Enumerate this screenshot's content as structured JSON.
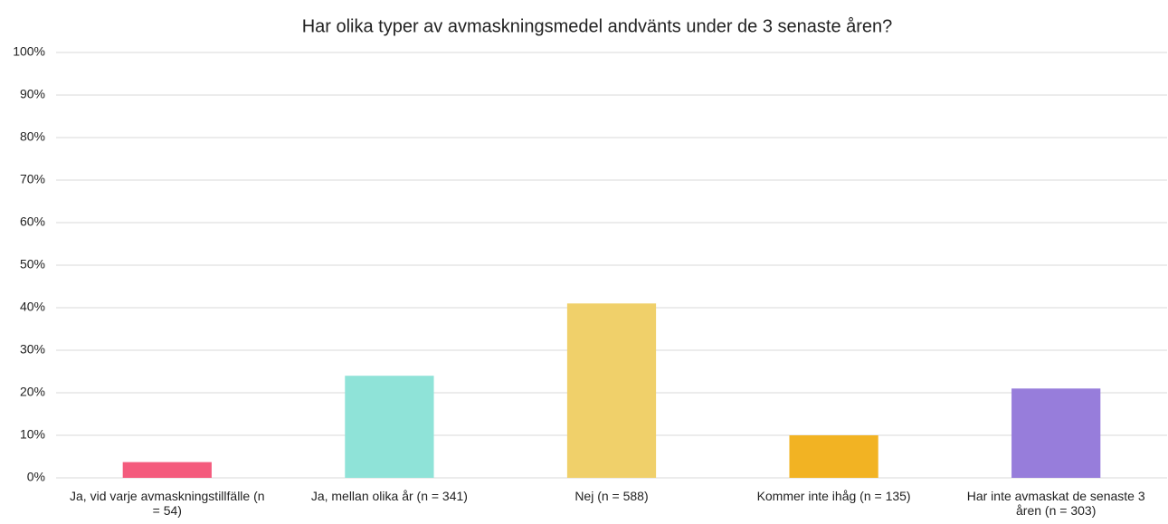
{
  "chart_data": {
    "type": "bar",
    "title": "Har olika typer av avmaskningsmedel andvänts under de 3 senaste åren?",
    "categories": [
      "Ja, vid varje avmaskningstillfälle (n = 54)",
      "Ja, mellan olika år (n = 341)",
      "Nej (n = 588)",
      "Kommer inte ihåg (n = 135)",
      "Har inte avmaskat de senaste 3 åren (n = 303)"
    ],
    "values": [
      3.7,
      24,
      41,
      10,
      21
    ],
    "colors": [
      "#f45b7d",
      "#8fe3d8",
      "#f0d06a",
      "#f2b323",
      "#977ddb"
    ],
    "ylim": [
      0,
      100
    ],
    "yticks": [
      {
        "value": 0,
        "label": "0%"
      },
      {
        "value": 10,
        "label": "10%"
      },
      {
        "value": 20,
        "label": "20%"
      },
      {
        "value": 30,
        "label": "30%"
      },
      {
        "value": 40,
        "label": "40%"
      },
      {
        "value": 50,
        "label": "50%"
      },
      {
        "value": 60,
        "label": "60%"
      },
      {
        "value": 70,
        "label": "70%"
      },
      {
        "value": 80,
        "label": "80%"
      },
      {
        "value": 90,
        "label": "90%"
      },
      {
        "value": 100,
        "label": "100%"
      }
    ],
    "grid": true
  }
}
